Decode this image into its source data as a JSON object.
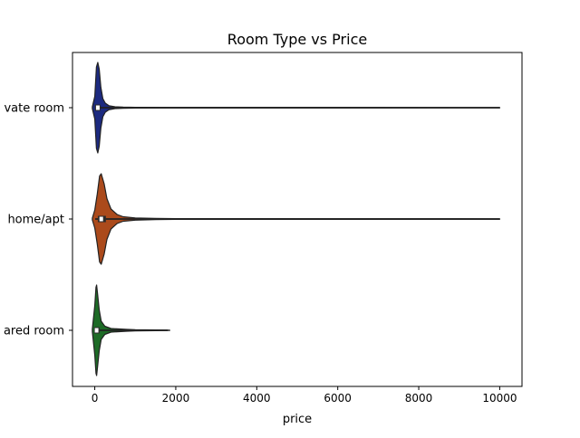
{
  "chart_data": {
    "type": "violin",
    "title": "Room Type vs Price",
    "xlabel": "price",
    "ylabel": "",
    "xlim": [
      -550,
      10550
    ],
    "xticks": [
      0,
      2000,
      4000,
      6000,
      8000,
      10000
    ],
    "grid": false,
    "orientation": "horizontal",
    "categories": [
      "Private room",
      "Entire home/apt",
      "Shared room"
    ],
    "visible_category_labels": [
      "vate room",
      "home/apt",
      "ared room"
    ],
    "series": [
      {
        "category": "Private room",
        "color": "#1c2a80",
        "min": 10,
        "max": 10000,
        "q1": 50,
        "median": 75,
        "q3": 95,
        "density_profile": [
          [
            -60,
            0.02
          ],
          [
            0,
            0.25
          ],
          [
            40,
            0.9
          ],
          [
            75,
            1.0
          ],
          [
            110,
            0.85
          ],
          [
            150,
            0.45
          ],
          [
            200,
            0.2
          ],
          [
            260,
            0.1
          ],
          [
            350,
            0.045
          ],
          [
            500,
            0.02
          ],
          [
            700,
            0.012
          ],
          [
            1000,
            0.008
          ],
          [
            2000,
            0.006
          ],
          [
            10000,
            0.004
          ]
        ]
      },
      {
        "category": "Entire home/apt",
        "color": "#ab4a1b",
        "min": 10,
        "max": 10000,
        "q1": 120,
        "median": 160,
        "q3": 230,
        "density_profile": [
          [
            -60,
            0.02
          ],
          [
            0,
            0.2
          ],
          [
            60,
            0.55
          ],
          [
            120,
            0.95
          ],
          [
            160,
            1.0
          ],
          [
            230,
            0.78
          ],
          [
            300,
            0.45
          ],
          [
            400,
            0.22
          ],
          [
            550,
            0.1
          ],
          [
            700,
            0.05
          ],
          [
            1000,
            0.025
          ],
          [
            1500,
            0.012
          ],
          [
            2000,
            0.008
          ],
          [
            10000,
            0.005
          ]
        ]
      },
      {
        "category": "Shared room",
        "color": "#1d6b26",
        "min": 10,
        "max": 1800,
        "q1": 30,
        "median": 45,
        "q3": 70,
        "density_profile": [
          [
            -60,
            0.03
          ],
          [
            0,
            0.55
          ],
          [
            30,
            0.95
          ],
          [
            45,
            1.0
          ],
          [
            70,
            0.8
          ],
          [
            110,
            0.45
          ],
          [
            160,
            0.2
          ],
          [
            250,
            0.09
          ],
          [
            400,
            0.04
          ],
          [
            800,
            0.02
          ],
          [
            1000,
            0.012
          ],
          [
            1500,
            0.008
          ],
          [
            1850,
            0.004
          ]
        ]
      }
    ]
  }
}
